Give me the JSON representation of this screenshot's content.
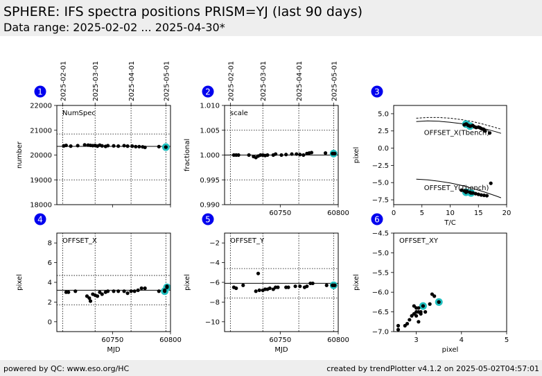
{
  "header": {
    "title": "SPHERE: IFS spectra positions PRISM=YJ (last 90 days)",
    "subtitle": "Data range: 2025-02-02 ... 2025-04-30*"
  },
  "footer": {
    "left": "powered by QC: www.eso.org/HC",
    "right": "created by trendPlotter v4.1.2 on 2025-05-02T04:57:01"
  },
  "colors": {
    "data": "#000000",
    "highlight": "#20c0c0",
    "badge": "#0000ee",
    "header_bg": "#eeeeee"
  },
  "date_axis": {
    "labels": [
      "2025-02-01",
      "2025-03-01",
      "2025-04-01",
      "2025-05-01"
    ],
    "mjd": [
      60707,
      60735,
      60766,
      60796
    ]
  },
  "chart_data": [
    {
      "id": 1,
      "badge": "1",
      "type": "scatter",
      "label": "NumSpec",
      "ylabel": "number",
      "xlabel": "",
      "xlim": [
        60702,
        60800
      ],
      "ylim": [
        18000,
        22000
      ],
      "xticks": [
        60750,
        60800
      ],
      "xtick_labels": [
        "",
        ""
      ],
      "yticks": [
        18000,
        19000,
        20000,
        21000,
        22000
      ],
      "ytick_labels": [
        "18000",
        "19000",
        "20000",
        "21000",
        "22000"
      ],
      "median": 20350,
      "thresholds": [
        19000,
        20850
      ],
      "top_dates": true,
      "points": [
        [
          60708,
          20370
        ],
        [
          60710,
          20390
        ],
        [
          60714,
          20360
        ],
        [
          60720,
          20380
        ],
        [
          60726,
          20410
        ],
        [
          60729,
          20400
        ],
        [
          60731,
          20390
        ],
        [
          60733,
          20380
        ],
        [
          60735,
          20390
        ],
        [
          60737,
          20360
        ],
        [
          60739,
          20400
        ],
        [
          60741,
          20370
        ],
        [
          60744,
          20350
        ],
        [
          60746,
          20380
        ],
        [
          60751,
          20370
        ],
        [
          60755,
          20360
        ],
        [
          60760,
          20380
        ],
        [
          60763,
          20360
        ],
        [
          60767,
          20360
        ],
        [
          60770,
          20340
        ],
        [
          60773,
          20340
        ],
        [
          60776,
          20330
        ],
        [
          60778,
          20310
        ],
        [
          60790,
          20340
        ],
        [
          60796,
          20320
        ]
      ],
      "highlight": [
        [
          60796,
          20320
        ]
      ]
    },
    {
      "id": 2,
      "badge": "2",
      "type": "scatter",
      "label": "scale",
      "ylabel": "fractional",
      "xlabel": "",
      "xlim": [
        60702,
        60800
      ],
      "ylim": [
        0.99,
        1.01
      ],
      "xticks": [
        60750,
        60800
      ],
      "xtick_labels": [
        "60750",
        "60800"
      ],
      "yticks": [
        0.99,
        0.995,
        1.0,
        1.005,
        1.01
      ],
      "ytick_labels": [
        "0.990",
        "0.995",
        "1.000",
        "1.005",
        "1.010"
      ],
      "median": 1.0,
      "thresholds": [
        0.995,
        1.005
      ],
      "top_dates": true,
      "points": [
        [
          60710,
          1.0
        ],
        [
          60712,
          1.0
        ],
        [
          60714,
          1.0
        ],
        [
          60723,
          1.0
        ],
        [
          60727,
          0.9997
        ],
        [
          60729,
          0.9995
        ],
        [
          60731,
          0.9998
        ],
        [
          60733,
          1.0
        ],
        [
          60735,
          1.0
        ],
        [
          60737,
          0.9999
        ],
        [
          60739,
          1.0
        ],
        [
          60744,
          1.0
        ],
        [
          60746,
          1.0002
        ],
        [
          60751,
          1.0
        ],
        [
          60755,
          1.0001
        ],
        [
          60760,
          1.0002
        ],
        [
          60764,
          1.0002
        ],
        [
          60767,
          1.0001
        ],
        [
          60770,
          1.0
        ],
        [
          60773,
          1.0003
        ],
        [
          60775,
          1.0004
        ],
        [
          60777,
          1.0005
        ],
        [
          60789,
          1.0004
        ],
        [
          60795,
          1.0003
        ],
        [
          60797,
          1.0003
        ]
      ],
      "highlight": [
        [
          60796,
          1.0003
        ]
      ]
    },
    {
      "id": 3,
      "badge": "3",
      "type": "scatter",
      "label": "",
      "ylabel": "pixel",
      "xlabel": "T/C",
      "xlim": [
        0,
        20
      ],
      "ylim": [
        -8.2,
        6.2
      ],
      "xticks": [
        0,
        5,
        10,
        15,
        20
      ],
      "xtick_labels": [
        "0",
        "5",
        "10",
        "15",
        "20"
      ],
      "yticks": [
        -7.5,
        -5.0,
        -2.5,
        0.0,
        2.5,
        5.0
      ],
      "ytick_labels": [
        "−7.5",
        "−5.0",
        "−2.5",
        "0.0",
        "2.5",
        "5.0"
      ],
      "annotations": [
        {
          "text": "OFFSET_X(Tbench)",
          "x": 5,
          "y": 1.9
        },
        {
          "text": "OFFSET_Y(Tbench)",
          "x": 5,
          "y": -6.1
        }
      ],
      "curves": [
        {
          "dash": true,
          "points": [
            [
              4,
              4.35
            ],
            [
              6,
              4.45
            ],
            [
              8,
              4.45
            ],
            [
              10,
              4.35
            ],
            [
              12,
              4.15
            ],
            [
              14,
              3.85
            ],
            [
              16,
              3.45
            ],
            [
              18,
              3.0
            ],
            [
              19,
              2.75
            ]
          ]
        },
        {
          "dash": false,
          "points": [
            [
              4,
              3.85
            ],
            [
              6,
              3.95
            ],
            [
              8,
              3.9
            ],
            [
              10,
              3.75
            ],
            [
              12,
              3.55
            ],
            [
              14,
              3.25
            ],
            [
              16,
              2.85
            ],
            [
              18,
              2.4
            ],
            [
              19,
              2.15
            ]
          ]
        },
        {
          "dash": false,
          "points": [
            [
              4,
              -4.5
            ],
            [
              6,
              -4.6
            ],
            [
              8,
              -4.8
            ],
            [
              10,
              -5.05
            ],
            [
              12,
              -5.4
            ],
            [
              14,
              -5.85
            ],
            [
              16,
              -6.35
            ],
            [
              18,
              -6.9
            ],
            [
              19,
              -7.2
            ]
          ]
        }
      ],
      "points": [
        [
          12.5,
          3.4
        ],
        [
          12.9,
          3.5
        ],
        [
          13.2,
          3.3
        ],
        [
          13.6,
          3.2
        ],
        [
          14.0,
          3.3
        ],
        [
          14.3,
          3.1
        ],
        [
          14.6,
          3.0
        ],
        [
          15.0,
          3.05
        ],
        [
          15.3,
          2.95
        ],
        [
          15.6,
          2.8
        ],
        [
          15.9,
          2.75
        ],
        [
          16.2,
          2.5
        ],
        [
          17.0,
          2.2
        ],
        [
          12.0,
          -6.1
        ],
        [
          12.5,
          -6.2
        ],
        [
          13.0,
          -6.3
        ],
        [
          13.5,
          -6.4
        ],
        [
          14.0,
          -6.5
        ],
        [
          14.5,
          -6.6
        ],
        [
          15.0,
          -6.7
        ],
        [
          15.5,
          -6.8
        ],
        [
          16.0,
          -6.85
        ],
        [
          16.5,
          -6.9
        ],
        [
          17.2,
          -5.1
        ]
      ],
      "highlight": [
        [
          12.8,
          3.5
        ],
        [
          13.5,
          3.2
        ],
        [
          12.8,
          -6.4
        ],
        [
          13.7,
          -6.5
        ]
      ]
    },
    {
      "id": 4,
      "badge": "4",
      "type": "scatter",
      "label": "OFFSET_X",
      "ylabel": "pixel",
      "xlabel": "MJD",
      "xlim": [
        60702,
        60800
      ],
      "ylim": [
        -1,
        9
      ],
      "xticks": [
        60750,
        60800
      ],
      "xtick_labels": [
        "60750",
        "60800"
      ],
      "yticks": [
        0,
        2,
        4,
        6,
        8
      ],
      "ytick_labels": [
        "0",
        "2",
        "4",
        "6",
        "8"
      ],
      "median": 3.2,
      "thresholds": [
        1.7,
        4.7
      ],
      "top_dates": false,
      "points": [
        [
          60710,
          3.0
        ],
        [
          60712,
          3.0
        ],
        [
          60718,
          3.1
        ],
        [
          60728,
          2.6
        ],
        [
          60730,
          2.4
        ],
        [
          60731,
          2.1
        ],
        [
          60733,
          2.8
        ],
        [
          60735,
          2.7
        ],
        [
          60737,
          2.6
        ],
        [
          60739,
          3.0
        ],
        [
          60741,
          2.8
        ],
        [
          60744,
          3.0
        ],
        [
          60746,
          3.1
        ],
        [
          60751,
          3.1
        ],
        [
          60755,
          3.1
        ],
        [
          60760,
          3.1
        ],
        [
          60763,
          2.9
        ],
        [
          60766,
          3.1
        ],
        [
          60769,
          3.1
        ],
        [
          60772,
          3.2
        ],
        [
          60775,
          3.4
        ],
        [
          60778,
          3.4
        ],
        [
          60790,
          3.1
        ],
        [
          60795,
          3.2
        ],
        [
          60797,
          3.6
        ]
      ],
      "highlight": [
        [
          60795,
          3.1
        ],
        [
          60797,
          3.5
        ]
      ]
    },
    {
      "id": 5,
      "badge": "5",
      "type": "scatter",
      "label": "OFFSET_Y",
      "ylabel": "pixel",
      "xlabel": "MJD",
      "xlim": [
        60702,
        60800
      ],
      "ylim": [
        -11,
        -1
      ],
      "xticks": [
        60750,
        60800
      ],
      "xtick_labels": [
        "60750",
        "60800"
      ],
      "yticks": [
        -10,
        -8,
        -6,
        -4,
        -2
      ],
      "ytick_labels": [
        "−10",
        "−8",
        "−6",
        "−4",
        "−2"
      ],
      "median": -6.1,
      "thresholds": [
        -7.6,
        -4.6
      ],
      "top_dates": false,
      "points": [
        [
          60710,
          -6.5
        ],
        [
          60712,
          -6.6
        ],
        [
          60718,
          -6.3
        ],
        [
          60729,
          -6.9
        ],
        [
          60731,
          -5.1
        ],
        [
          60732,
          -6.8
        ],
        [
          60735,
          -6.8
        ],
        [
          60737,
          -6.7
        ],
        [
          60739,
          -6.7
        ],
        [
          60741,
          -6.6
        ],
        [
          60744,
          -6.7
        ],
        [
          60746,
          -6.5
        ],
        [
          60748,
          -6.5
        ],
        [
          60755,
          -6.5
        ],
        [
          60757,
          -6.5
        ],
        [
          60763,
          -6.4
        ],
        [
          60767,
          -6.4
        ],
        [
          60771,
          -6.5
        ],
        [
          60773,
          -6.4
        ],
        [
          60776,
          -6.1
        ],
        [
          60778,
          -6.1
        ],
        [
          60790,
          -6.3
        ],
        [
          60795,
          -6.3
        ],
        [
          60797,
          -6.3
        ]
      ],
      "highlight": [
        [
          60796,
          -6.3
        ]
      ]
    },
    {
      "id": 6,
      "badge": "6",
      "type": "scatter",
      "label": "OFFSET_XY",
      "ylabel": "pixel",
      "xlabel": "pixel",
      "xlim": [
        2.5,
        5
      ],
      "ylim": [
        -7,
        -4.5
      ],
      "xticks": [
        3,
        4,
        5
      ],
      "xtick_labels": [
        "3",
        "4",
        "5"
      ],
      "yticks": [
        -7.0,
        -6.5,
        -6.0,
        -5.5,
        -5.0,
        -4.5
      ],
      "ytick_labels": [
        "−7.0",
        "−6.5",
        "−6.0",
        "−5.5",
        "−5.0",
        "−4.5"
      ],
      "points": [
        [
          2.6,
          -6.95
        ],
        [
          2.6,
          -6.85
        ],
        [
          2.75,
          -6.85
        ],
        [
          2.8,
          -6.8
        ],
        [
          2.85,
          -6.7
        ],
        [
          2.9,
          -6.6
        ],
        [
          2.95,
          -6.55
        ],
        [
          3.0,
          -6.6
        ],
        [
          3.0,
          -6.5
        ],
        [
          3.0,
          -6.4
        ],
        [
          3.05,
          -6.5
        ],
        [
          3.05,
          -6.4
        ],
        [
          3.1,
          -6.55
        ],
        [
          3.1,
          -6.5
        ],
        [
          3.15,
          -6.35
        ],
        [
          3.2,
          -6.5
        ],
        [
          3.3,
          -6.3
        ],
        [
          3.35,
          -6.05
        ],
        [
          3.4,
          -6.1
        ],
        [
          3.5,
          -6.25
        ],
        [
          2.95,
          -6.35
        ],
        [
          3.05,
          -6.75
        ]
      ],
      "highlight": [
        [
          3.15,
          -6.35
        ],
        [
          3.5,
          -6.25
        ]
      ]
    }
  ]
}
